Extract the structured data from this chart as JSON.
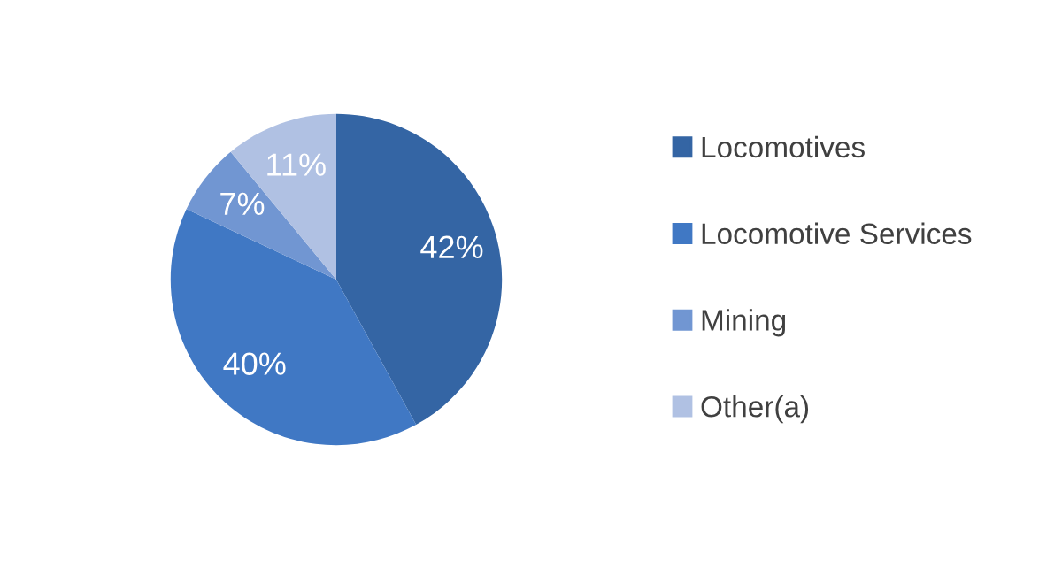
{
  "chart_data": {
    "type": "pie",
    "categories": [
      "Locomotives",
      "Locomotive Services",
      "Mining",
      "Other(a)"
    ],
    "values": [
      42,
      40,
      7,
      11
    ],
    "colors": [
      "#3465a4",
      "#4078c4",
      "#7196d2",
      "#b0c1e3"
    ],
    "value_labels": [
      "42%",
      "40%",
      "7%",
      "11%"
    ],
    "legend": "right"
  }
}
